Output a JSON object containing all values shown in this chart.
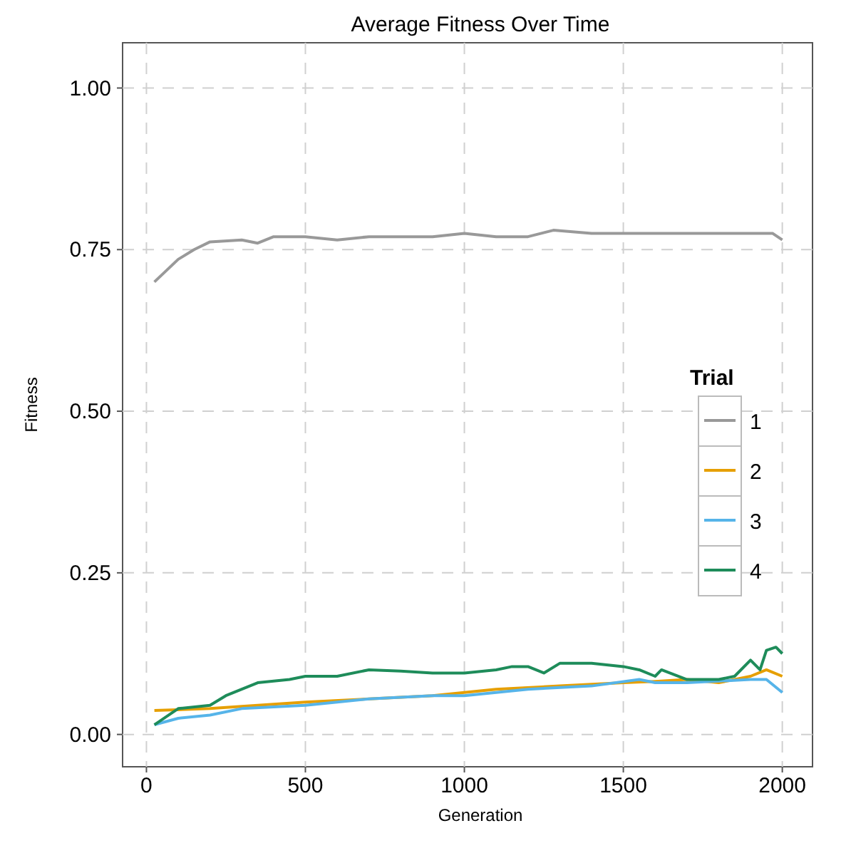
{
  "chart_data": {
    "type": "line",
    "title": "Average Fitness Over Time",
    "xlabel": "Generation",
    "ylabel": "Fitness",
    "legend_title": "Trial",
    "xlim": [
      -75,
      2095
    ],
    "ylim": [
      -0.05,
      1.07
    ],
    "xticks": [
      0,
      500,
      1000,
      1500,
      2000
    ],
    "yticks": [
      {
        "value": 0,
        "label": "0.00"
      },
      {
        "value": 0.25,
        "label": "0.25"
      },
      {
        "value": 0.5,
        "label": "0.50"
      },
      {
        "value": 0.75,
        "label": "0.75"
      },
      {
        "value": 1,
        "label": "1.00"
      }
    ],
    "grid": true,
    "legend": "right",
    "line_style": "solid",
    "series": [
      {
        "name": "1",
        "color": "#999999",
        "x": [
          25,
          100,
          150,
          200,
          300,
          350,
          400,
          500,
          600,
          700,
          800,
          900,
          1000,
          1100,
          1200,
          1280,
          1400,
          1500,
          1600,
          1700,
          1800,
          1900,
          1970,
          2000
        ],
        "values": [
          0.7,
          0.735,
          0.75,
          0.762,
          0.765,
          0.76,
          0.77,
          0.77,
          0.765,
          0.77,
          0.77,
          0.77,
          0.775,
          0.77,
          0.77,
          0.78,
          0.775,
          0.775,
          0.775,
          0.775,
          0.775,
          0.775,
          0.775,
          0.765
        ]
      },
      {
        "name": "2",
        "color": "#e69f00",
        "x": [
          25,
          200,
          500,
          700,
          900,
          1000,
          1100,
          1300,
          1500,
          1600,
          1700,
          1800,
          1900,
          1950,
          2000
        ],
        "values": [
          0.037,
          0.04,
          0.05,
          0.055,
          0.06,
          0.065,
          0.07,
          0.075,
          0.08,
          0.082,
          0.085,
          0.08,
          0.09,
          0.1,
          0.09
        ]
      },
      {
        "name": "3",
        "color": "#56b4e9",
        "x": [
          25,
          100,
          200,
          300,
          500,
          600,
          700,
          900,
          1000,
          1200,
          1400,
          1550,
          1600,
          1700,
          1900,
          1950,
          2000
        ],
        "values": [
          0.015,
          0.025,
          0.03,
          0.04,
          0.045,
          0.05,
          0.055,
          0.06,
          0.06,
          0.07,
          0.075,
          0.085,
          0.08,
          0.08,
          0.085,
          0.085,
          0.065
        ]
      },
      {
        "name": "4",
        "color": "#1e8c5a",
        "x": [
          25,
          100,
          200,
          250,
          300,
          350,
          450,
          500,
          600,
          700,
          800,
          900,
          1000,
          1100,
          1150,
          1200,
          1250,
          1300,
          1400,
          1500,
          1550,
          1600,
          1620,
          1700,
          1800,
          1850,
          1900,
          1930,
          1950,
          1980,
          2000
        ],
        "values": [
          0.015,
          0.04,
          0.045,
          0.06,
          0.07,
          0.08,
          0.085,
          0.09,
          0.09,
          0.1,
          0.098,
          0.095,
          0.095,
          0.1,
          0.105,
          0.105,
          0.095,
          0.11,
          0.11,
          0.105,
          0.1,
          0.09,
          0.1,
          0.085,
          0.085,
          0.09,
          0.115,
          0.1,
          0.13,
          0.135,
          0.125
        ]
      }
    ]
  }
}
